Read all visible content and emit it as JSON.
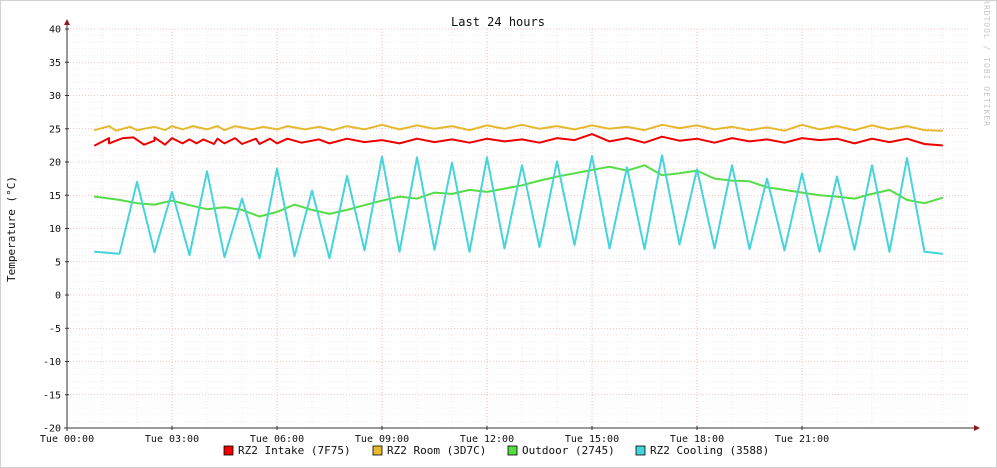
{
  "chart_data": {
    "type": "line",
    "title": "Last 24 hours",
    "ylabel": "Temperature (°C)",
    "watermark": "RRDTOOL / TOBI OETIKER",
    "ylim": [
      -20,
      40
    ],
    "yticks": [
      40,
      35,
      30,
      25,
      20,
      15,
      10,
      5,
      0,
      -5,
      -10,
      -15,
      -20
    ],
    "xlim": [
      0,
      25.8
    ],
    "xticks": [
      {
        "label": "Tue 00:00",
        "value": 0
      },
      {
        "label": "Tue 03:00",
        "value": 3
      },
      {
        "label": "Tue 06:00",
        "value": 6
      },
      {
        "label": "Tue 09:00",
        "value": 9
      },
      {
        "label": "Tue 12:00",
        "value": 12
      },
      {
        "label": "Tue 15:00",
        "value": 15
      },
      {
        "label": "Tue 18:00",
        "value": 18
      },
      {
        "label": "Tue 21:00",
        "value": 21
      }
    ],
    "grid": true,
    "legend_position": "bottom",
    "series": [
      {
        "name": "RZ2 Intake (7F75)",
        "color": "#ee0000",
        "x": [
          0.8,
          1.2,
          1.2,
          1.6,
          1.9,
          2.2,
          2.5,
          2.5,
          2.8,
          3.0,
          3.3,
          3.5,
          3.7,
          3.9,
          4.2,
          4.3,
          4.5,
          4.8,
          5.0,
          5.4,
          5.5,
          5.8,
          6.0,
          6.3,
          6.7,
          7.2,
          7.5,
          8.0,
          8.5,
          9.0,
          9.5,
          10.0,
          10.5,
          11.0,
          11.5,
          12.0,
          12.5,
          13.0,
          13.5,
          14.0,
          14.5,
          15.0,
          15.5,
          16.0,
          16.5,
          17.0,
          17.5,
          18.0,
          18.5,
          19.0,
          19.5,
          20.0,
          20.5,
          21.0,
          21.5,
          22.0,
          22.5,
          23.0,
          23.5,
          24.0,
          24.5,
          25.0
        ],
        "values": [
          22.5,
          23.6,
          22.8,
          23.6,
          23.7,
          22.6,
          23.2,
          23.7,
          22.6,
          23.6,
          22.8,
          23.4,
          22.8,
          23.4,
          22.7,
          23.5,
          22.8,
          23.6,
          22.7,
          23.5,
          22.7,
          23.5,
          22.8,
          23.5,
          22.9,
          23.4,
          22.8,
          23.5,
          23.0,
          23.3,
          22.8,
          23.5,
          23.0,
          23.4,
          22.9,
          23.5,
          23.1,
          23.4,
          22.9,
          23.6,
          23.3,
          24.2,
          23.1,
          23.6,
          22.9,
          23.8,
          23.2,
          23.5,
          22.9,
          23.6,
          23.1,
          23.4,
          22.9,
          23.6,
          23.3,
          23.5,
          22.8,
          23.5,
          23.0,
          23.5,
          22.7,
          22.5
        ]
      },
      {
        "name": "RZ2 Room (3D7C)",
        "color": "#e6b82e",
        "x": [
          0.8,
          1.2,
          1.4,
          1.8,
          2.0,
          2.5,
          2.8,
          3.0,
          3.3,
          3.6,
          4.0,
          4.3,
          4.5,
          4.8,
          5.3,
          5.6,
          6.0,
          6.3,
          6.8,
          7.2,
          7.6,
          8.0,
          8.5,
          9.0,
          9.5,
          10.0,
          10.5,
          11.0,
          11.5,
          12.0,
          12.5,
          13.0,
          13.5,
          14.0,
          14.5,
          15.0,
          15.5,
          16.0,
          16.5,
          17.0,
          17.5,
          18.0,
          18.5,
          19.0,
          19.5,
          20.0,
          20.5,
          21.0,
          21.5,
          22.0,
          22.5,
          23.0,
          23.5,
          24.0,
          24.5,
          25.0
        ],
        "values": [
          24.8,
          25.4,
          24.7,
          25.3,
          24.8,
          25.3,
          24.8,
          25.4,
          24.9,
          25.4,
          24.9,
          25.4,
          24.8,
          25.4,
          24.9,
          25.3,
          24.9,
          25.4,
          24.9,
          25.3,
          24.8,
          25.4,
          24.9,
          25.6,
          24.9,
          25.5,
          25.0,
          25.4,
          24.8,
          25.5,
          25.0,
          25.6,
          25.0,
          25.4,
          24.9,
          25.5,
          25.0,
          25.3,
          24.8,
          25.6,
          25.1,
          25.5,
          24.9,
          25.3,
          24.8,
          25.2,
          24.7,
          25.6,
          24.9,
          25.4,
          24.8,
          25.5,
          24.9,
          25.4,
          24.8,
          24.7
        ]
      },
      {
        "name": "Outdoor (2745)",
        "color": "#55dd44",
        "x": [
          0.8,
          1.5,
          2.0,
          2.5,
          3.0,
          3.5,
          4.0,
          4.5,
          5.0,
          5.5,
          6.0,
          6.5,
          7.0,
          7.5,
          8.0,
          8.5,
          9.0,
          9.5,
          10.0,
          10.5,
          11.0,
          11.5,
          12.0,
          12.5,
          13.0,
          13.5,
          14.0,
          14.5,
          15.0,
          15.5,
          16.0,
          16.5,
          17.0,
          17.5,
          18.0,
          18.5,
          19.0,
          19.5,
          20.0,
          20.5,
          21.0,
          21.5,
          22.0,
          22.5,
          23.0,
          23.5,
          24.0,
          24.5,
          25.0
        ],
        "values": [
          14.8,
          14.3,
          13.8,
          13.6,
          14.2,
          13.5,
          12.9,
          13.2,
          12.8,
          11.8,
          12.5,
          13.6,
          12.8,
          12.2,
          12.8,
          13.5,
          14.2,
          14.8,
          14.5,
          15.4,
          15.2,
          15.8,
          15.5,
          16.0,
          16.5,
          17.2,
          17.8,
          18.3,
          18.8,
          19.3,
          18.7,
          19.5,
          18.0,
          18.3,
          18.7,
          17.5,
          17.2,
          17.1,
          16.2,
          15.8,
          15.4,
          15.0,
          14.8,
          14.5,
          15.2,
          15.8,
          14.3,
          13.8,
          14.6
        ]
      },
      {
        "name": "RZ2 Cooling (3588)",
        "color": "#44d4dc",
        "x": [
          0.8,
          1.5,
          2.0,
          2.5,
          3.0,
          3.5,
          4.0,
          4.5,
          5.0,
          5.5,
          6.0,
          6.5,
          7.0,
          7.5,
          8.0,
          8.5,
          9.0,
          9.5,
          10.0,
          10.5,
          11.0,
          11.5,
          12.0,
          12.5,
          13.0,
          13.5,
          14.0,
          14.5,
          15.0,
          15.5,
          16.0,
          16.5,
          17.0,
          17.5,
          18.0,
          18.5,
          19.0,
          19.5,
          20.0,
          20.5,
          21.0,
          21.5,
          22.0,
          22.5,
          23.0,
          23.5,
          24.0,
          24.5,
          25.0
        ],
        "values": [
          6.5,
          6.2,
          17.0,
          6.4,
          15.5,
          6.0,
          18.6,
          5.7,
          14.5,
          5.5,
          19.0,
          5.8,
          15.7,
          5.5,
          17.9,
          6.7,
          20.8,
          6.5,
          20.7,
          6.8,
          19.9,
          6.5,
          20.7,
          7.0,
          19.5,
          7.2,
          20.1,
          7.5,
          20.9,
          7.0,
          19.2,
          6.9,
          21.0,
          7.6,
          18.9,
          7.0,
          19.5,
          6.9,
          17.5,
          6.7,
          18.3,
          6.5,
          17.8,
          6.8,
          19.5,
          6.5,
          20.6,
          6.5,
          6.2
        ]
      }
    ]
  }
}
